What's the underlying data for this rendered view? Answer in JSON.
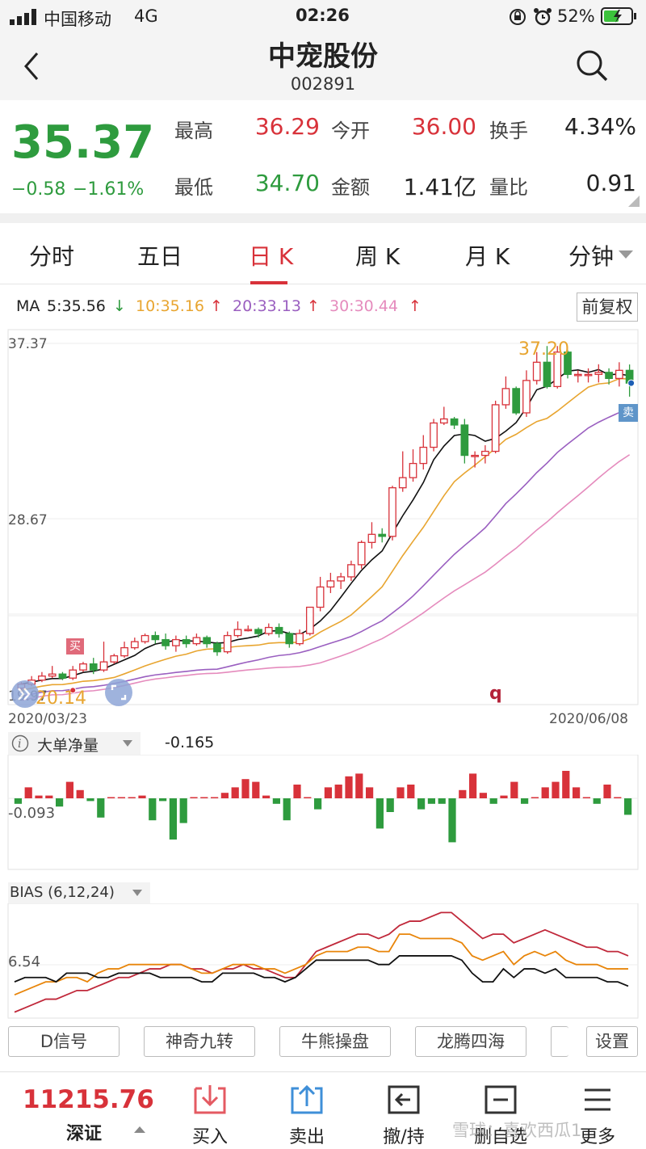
{
  "status_bar": {
    "carrier": "中国移动",
    "network": "4G",
    "time": "02:26",
    "battery": "52%"
  },
  "header": {
    "title": "中宠股份",
    "code": "002891"
  },
  "quote": {
    "price": "35.37",
    "change": "−0.58",
    "change_pct": "−1.61%",
    "high_label": "最高",
    "high": "36.29",
    "open_label": "今开",
    "open": "36.00",
    "turnover_label": "换手",
    "turnover": "4.34%",
    "low_label": "最低",
    "low": "34.70",
    "amount_label": "金额",
    "amount": "1.41亿",
    "vol_ratio_label": "量比",
    "vol_ratio": "0.91"
  },
  "tabs": [
    {
      "label": "分时"
    },
    {
      "label": "五日"
    },
    {
      "label": "日 K"
    },
    {
      "label": "周 K"
    },
    {
      "label": "月 K"
    },
    {
      "label": "分钟"
    }
  ],
  "ma": {
    "prefix": "MA",
    "ma5": "5:35.56",
    "ma10": "10:35.16",
    "ma20": "20:33.13",
    "ma30": "30:30.44",
    "arrow_down": "↓",
    "arrow_up": "↑",
    "colors": {
      "ma5": "#111111",
      "ma10": "#e8a530",
      "ma20": "#9a5fc0",
      "ma30": "#e58bbd"
    }
  },
  "adjust_button": "前复权",
  "kline": {
    "y_top": "37.37",
    "y_mid": "28.67",
    "y_bottom": "19.97",
    "high_marker": "37.20",
    "low_marker": "20.14",
    "date_start": "2020/03/23",
    "date_end": "2020/06/08",
    "buy_tag": "买",
    "sell_tag": "卖",
    "q_mark": "q"
  },
  "chart_data": [
    {
      "type": "candlestick",
      "ylim": [
        19.97,
        37.37
      ],
      "x_range": [
        "2020/03/23",
        "2020/06/08"
      ],
      "candles": [
        [
          20.3,
          20.5,
          20.1,
          20.6
        ],
        [
          20.5,
          20.7,
          20.4,
          20.9
        ],
        [
          20.7,
          20.9,
          20.6,
          21.1
        ],
        [
          20.9,
          21.0,
          20.8,
          21.4
        ],
        [
          21.0,
          20.8,
          20.7,
          21.1
        ],
        [
          20.8,
          21.2,
          20.7,
          21.4
        ],
        [
          21.2,
          21.5,
          21.1,
          21.6
        ],
        [
          21.5,
          21.2,
          21.0,
          21.8
        ],
        [
          21.2,
          21.6,
          21.1,
          22.6
        ],
        [
          21.6,
          21.9,
          21.5,
          22.0
        ],
        [
          21.9,
          22.3,
          21.8,
          22.6
        ],
        [
          22.3,
          22.6,
          22.2,
          22.8
        ],
        [
          22.6,
          22.9,
          22.5,
          23.0
        ],
        [
          22.9,
          22.7,
          22.5,
          23.1
        ],
        [
          22.7,
          22.4,
          22.2,
          23.0
        ],
        [
          22.4,
          22.7,
          22.1,
          22.9
        ],
        [
          22.7,
          22.5,
          22.3,
          22.9
        ],
        [
          22.5,
          22.8,
          22.4,
          23.0
        ],
        [
          22.8,
          22.5,
          22.3,
          22.9
        ],
        [
          22.5,
          22.1,
          21.9,
          22.6
        ],
        [
          22.1,
          22.9,
          22.0,
          23.1
        ],
        [
          22.9,
          23.2,
          22.8,
          23.6
        ],
        [
          23.2,
          23.2,
          23.1,
          23.4
        ],
        [
          23.2,
          23.0,
          22.8,
          23.3
        ],
        [
          23.0,
          23.3,
          22.9,
          23.5
        ],
        [
          23.3,
          23.0,
          22.8,
          23.5
        ],
        [
          23.0,
          22.5,
          22.3,
          23.1
        ],
        [
          22.5,
          23.0,
          22.4,
          23.2
        ],
        [
          23.0,
          24.3,
          22.9,
          24.3
        ],
        [
          24.3,
          25.3,
          24.1,
          25.8
        ],
        [
          25.3,
          25.6,
          25.0,
          26.0
        ],
        [
          25.6,
          25.8,
          25.2,
          26.0
        ],
        [
          25.8,
          26.4,
          25.6,
          26.6
        ],
        [
          26.4,
          27.5,
          26.2,
          27.6
        ],
        [
          27.5,
          27.9,
          27.2,
          28.5
        ],
        [
          27.9,
          27.8,
          27.5,
          28.2
        ],
        [
          27.8,
          30.2,
          27.6,
          30.3
        ],
        [
          30.2,
          30.7,
          30.0,
          32.0
        ],
        [
          30.7,
          31.4,
          30.5,
          32.1
        ],
        [
          31.4,
          32.2,
          31.1,
          32.8
        ],
        [
          32.2,
          33.4,
          32.0,
          33.6
        ],
        [
          33.4,
          33.6,
          33.3,
          34.2
        ],
        [
          33.6,
          33.3,
          33.1,
          33.7
        ],
        [
          33.3,
          31.8,
          31.4,
          33.6
        ],
        [
          31.8,
          31.8,
          31.2,
          32.0
        ],
        [
          31.8,
          32.0,
          31.4,
          32.3
        ],
        [
          32.0,
          34.3,
          31.9,
          34.5
        ],
        [
          34.3,
          35.1,
          34.1,
          35.7
        ],
        [
          35.1,
          33.9,
          33.8,
          35.2
        ],
        [
          33.9,
          35.5,
          33.7,
          36.0
        ],
        [
          35.5,
          36.4,
          35.3,
          36.9
        ],
        [
          36.4,
          35.2,
          35.1,
          37.2
        ],
        [
          35.2,
          36.9,
          35.1,
          37.2
        ],
        [
          36.9,
          35.8,
          35.6,
          37.0
        ],
        [
          35.8,
          35.8,
          35.4,
          36.0
        ],
        [
          35.8,
          35.8,
          35.4,
          36.1
        ],
        [
          35.8,
          35.9,
          35.4,
          36.3
        ],
        [
          35.9,
          35.6,
          35.3,
          36.1
        ],
        [
          35.6,
          36.0,
          35.2,
          36.4
        ],
        [
          36.0,
          35.37,
          34.7,
          36.29
        ]
      ]
    },
    {
      "type": "bar",
      "title": "大单净量",
      "value_label": "-0.165",
      "y_label": "-0.093",
      "values": [
        -0.02,
        0.04,
        0.01,
        0.01,
        -0.03,
        0.06,
        0.03,
        -0.01,
        -0.07,
        0.0,
        0.0,
        0.0,
        0.01,
        -0.08,
        -0.01,
        -0.15,
        -0.09,
        0.0,
        0.0,
        0.0,
        0.02,
        0.04,
        0.07,
        0.06,
        0.01,
        -0.02,
        -0.08,
        0.05,
        0.0,
        -0.04,
        0.04,
        0.05,
        0.08,
        0.09,
        0.04,
        -0.11,
        -0.05,
        0.04,
        0.05,
        -0.04,
        -0.02,
        -0.02,
        -0.16,
        0.03,
        0.09,
        0.02,
        -0.02,
        0.01,
        0.06,
        -0.02,
        0.0,
        0.04,
        0.06,
        0.1,
        0.04,
        0.0,
        -0.02,
        0.05,
        0.0,
        -0.06
      ]
    },
    {
      "type": "line",
      "title": "BIAS (6,12,24)",
      "y_label": "6.54",
      "series": [
        {
          "color": "#c0283a",
          "values": [
            -6,
            -5,
            -4,
            -3,
            -3,
            -2,
            -1,
            -1,
            0,
            1,
            2,
            2,
            3,
            4,
            4,
            5,
            5,
            4,
            4,
            3,
            4,
            4,
            5,
            4,
            4,
            3,
            2,
            2,
            5,
            8,
            9,
            10,
            11,
            12,
            12,
            11,
            12,
            14,
            15,
            15,
            16,
            17,
            17,
            15,
            13,
            11,
            12,
            12,
            10,
            11,
            12,
            13,
            12,
            11,
            10,
            9,
            9,
            8,
            8,
            7
          ]
        },
        {
          "color": "#e8850a",
          "values": [
            -2,
            -1,
            0,
            1,
            1,
            2,
            2,
            1,
            3,
            4,
            4,
            5,
            5,
            5,
            5,
            5,
            5,
            4,
            3,
            3,
            4,
            5,
            5,
            5,
            4,
            4,
            3,
            4,
            5,
            7,
            8,
            8,
            8,
            9,
            9,
            8,
            8,
            12,
            12,
            11,
            11,
            11,
            11,
            10,
            7,
            6,
            7,
            8,
            5,
            7,
            8,
            7,
            8,
            6,
            5,
            5,
            5,
            4,
            4,
            4
          ]
        },
        {
          "color": "#111111",
          "values": [
            1,
            2,
            2,
            2,
            1,
            3,
            3,
            3,
            2,
            2,
            3,
            3,
            3,
            3,
            2,
            2,
            2,
            2,
            1,
            1,
            3,
            3,
            3,
            3,
            2,
            2,
            1,
            2,
            4,
            6,
            6,
            6,
            6,
            6,
            6,
            5,
            5,
            7,
            7,
            7,
            7,
            7,
            7,
            6,
            3,
            1,
            1,
            4,
            2,
            4,
            4,
            3,
            4,
            2,
            2,
            2,
            2,
            1,
            1,
            0
          ]
        }
      ]
    }
  ],
  "indicator_chips": [
    {
      "label": "D信号"
    },
    {
      "label": "神奇九转"
    },
    {
      "label": "牛熊操盘"
    },
    {
      "label": "龙腾四海"
    },
    {
      "label": ""
    },
    {
      "label": "设置"
    }
  ],
  "bottom_bar": {
    "index_value": "11215.76",
    "index_name": "深证",
    "buy": "买入",
    "sell": "卖出",
    "cancel": "撤/持",
    "remove_watch": "删自选",
    "more": "更多",
    "watermark": "雪球：喜欢西瓜1"
  }
}
